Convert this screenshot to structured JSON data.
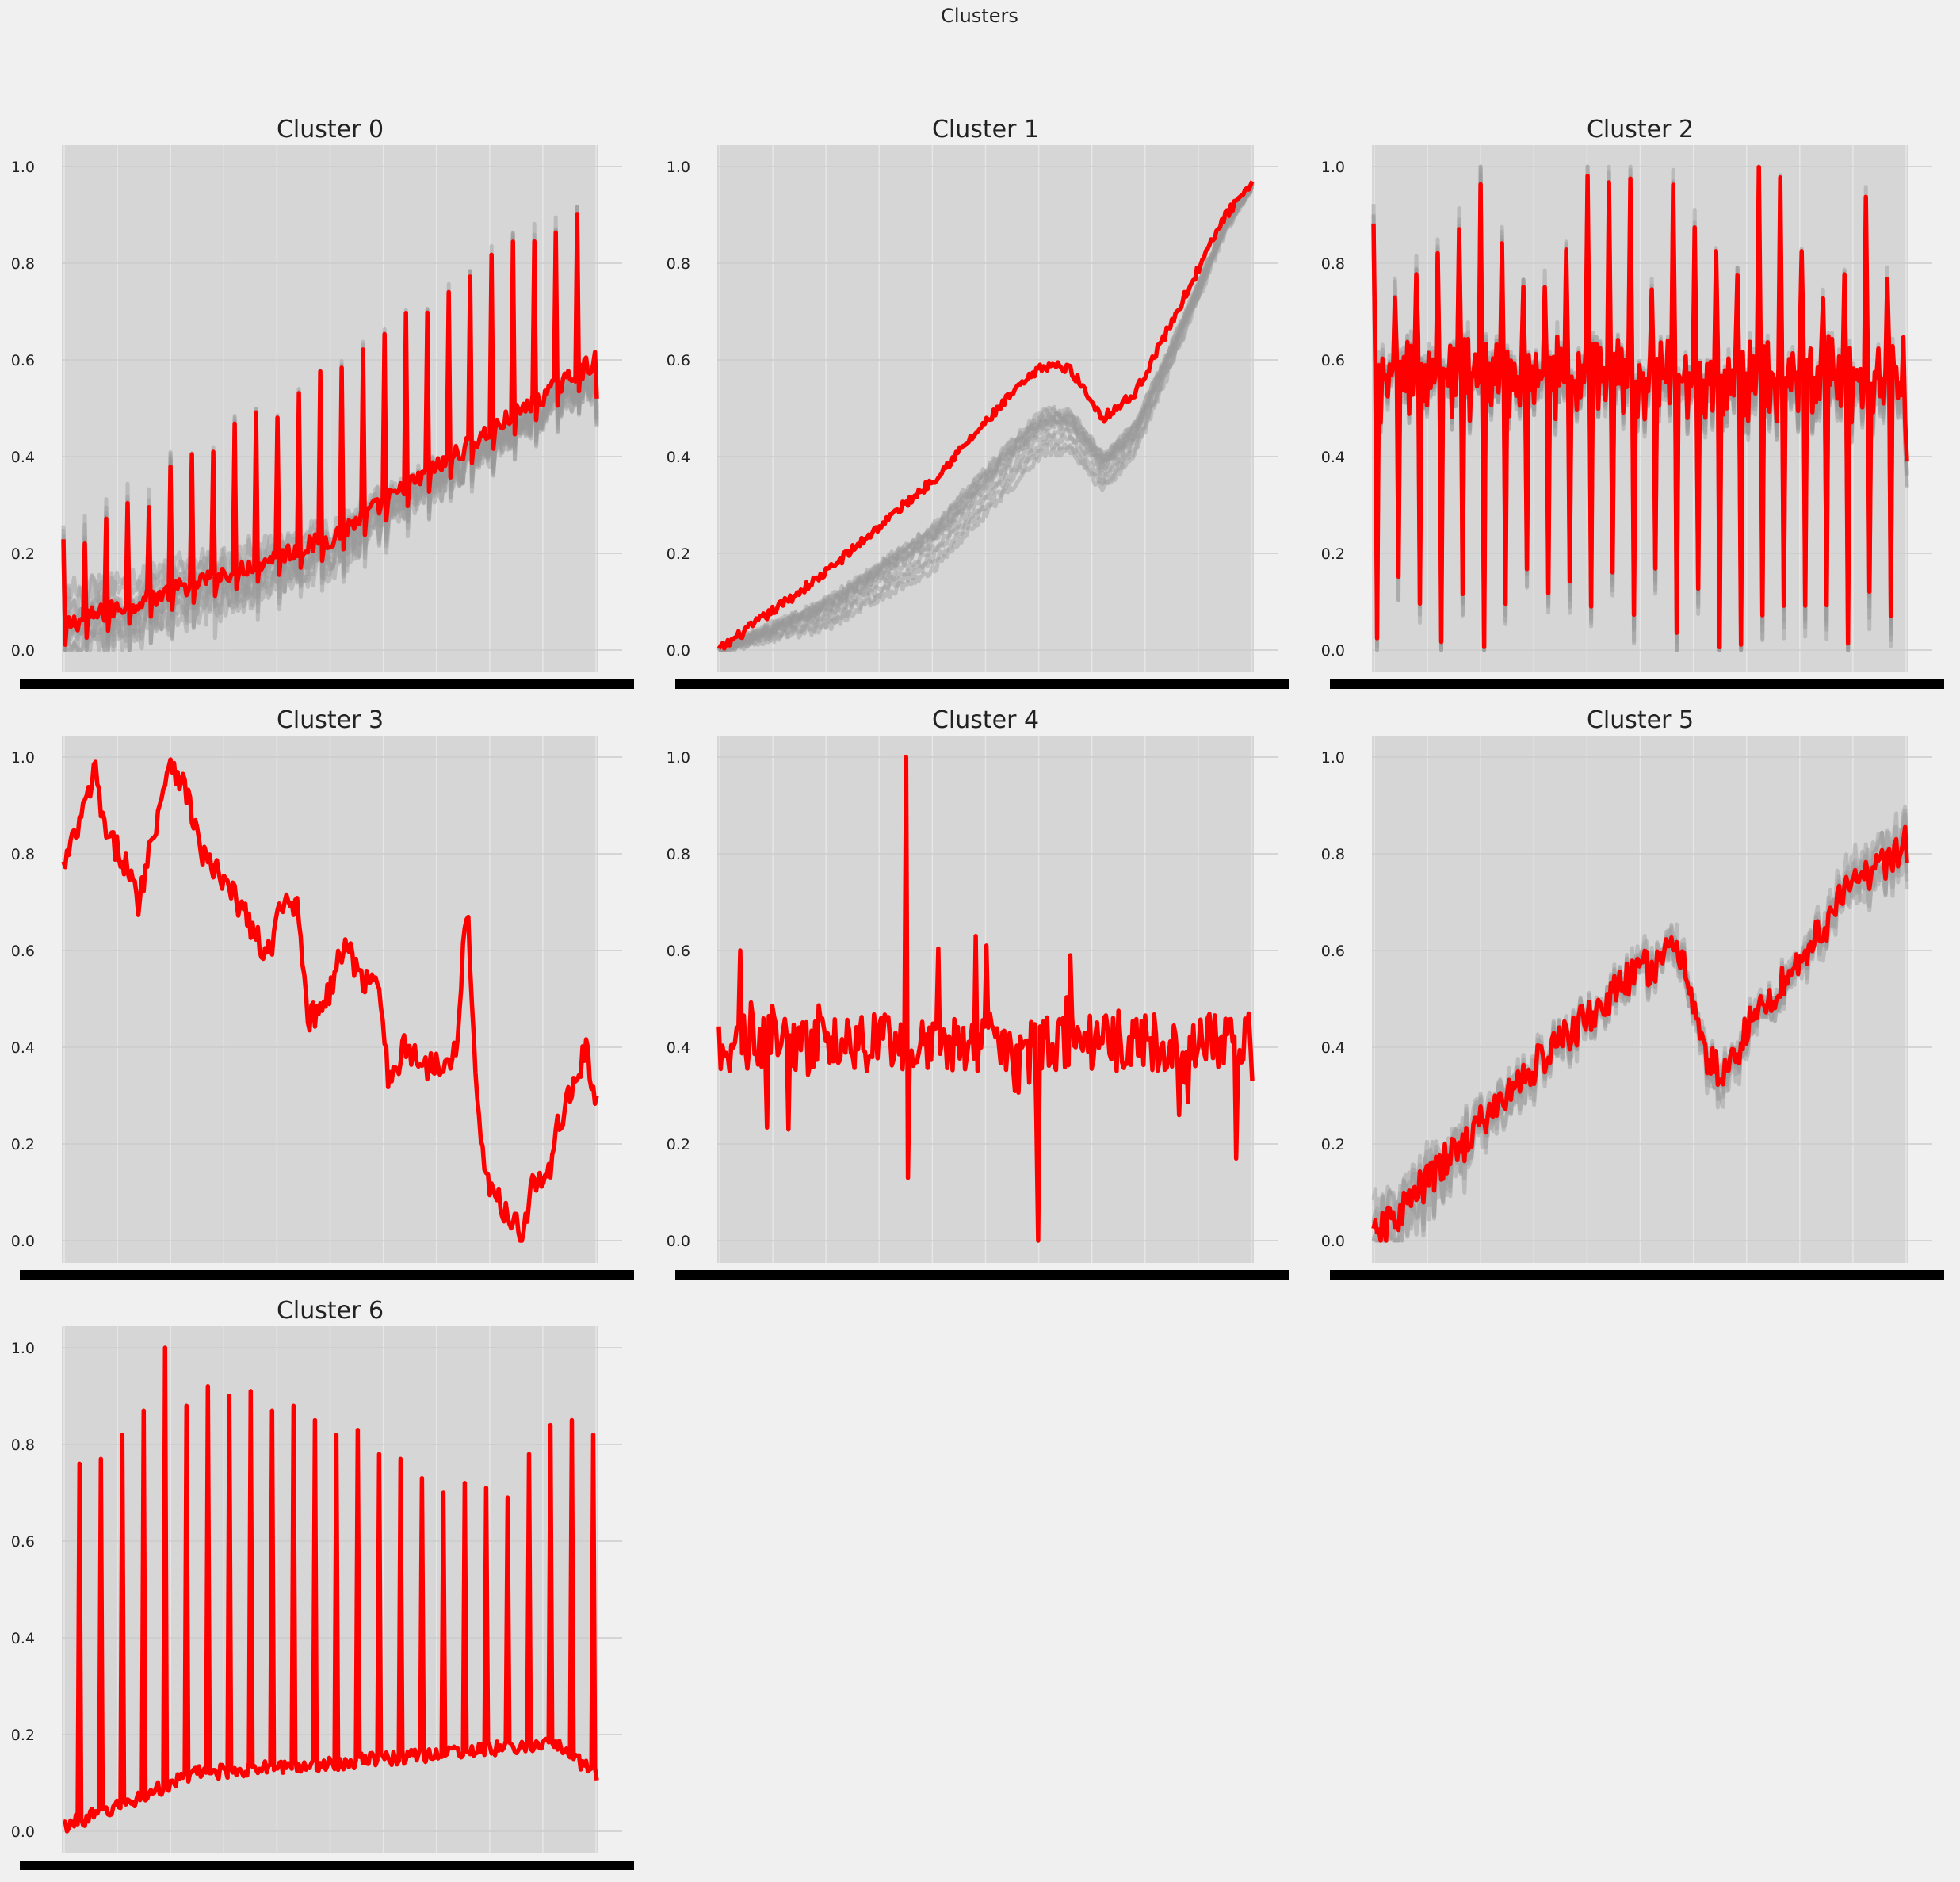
{
  "figure": {
    "suptitle": "Clusters"
  },
  "chart_data": [
    {
      "type": "line",
      "title": "Cluster 0",
      "ylim": [
        0,
        1
      ],
      "yticks": [
        "0.0",
        "0.2",
        "0.4",
        "0.6",
        "0.8",
        "1.0"
      ],
      "members": 10,
      "n": 300,
      "gray": true,
      "centroid": {
        "kind": "trend_spikes",
        "trend": [
          [
            0,
            0.05
          ],
          [
            0.5,
            0.23
          ],
          [
            1.0,
            0.6
          ]
        ],
        "period": 12,
        "spike": [
          0.2,
          0.95
        ],
        "dip": 0.04,
        "noise": 0.02,
        "end": 0.52
      },
      "color": "#ff0000",
      "member_color": "#999999"
    },
    {
      "type": "line",
      "title": "Cluster 1",
      "ylim": [
        0,
        1
      ],
      "yticks": [
        "0.0",
        "0.2",
        "0.4",
        "0.6",
        "0.8",
        "1.0"
      ],
      "members": 12,
      "n": 300,
      "gray": true,
      "centroid": {
        "kind": "curve",
        "points": [
          [
            0,
            0.0
          ],
          [
            0.2,
            0.16
          ],
          [
            0.4,
            0.35
          ],
          [
            0.55,
            0.53
          ],
          [
            0.6,
            0.58
          ],
          [
            0.62,
            0.59
          ],
          [
            0.66,
            0.58
          ],
          [
            0.72,
            0.48
          ],
          [
            0.78,
            0.53
          ],
          [
            0.85,
            0.68
          ],
          [
            0.95,
            0.9
          ],
          [
            1.0,
            0.96
          ]
        ],
        "noise": 0.01
      },
      "color": "#ff0000",
      "member_color": "#999999"
    },
    {
      "type": "line",
      "title": "Cluster 2",
      "ylim": [
        0,
        1
      ],
      "yticks": [
        "0.0",
        "0.2",
        "0.4",
        "0.6",
        "0.8",
        "1.0"
      ],
      "members": 8,
      "n": 300,
      "gray": true,
      "centroid": {
        "kind": "oscillation",
        "base": 0.56,
        "noise": 0.05,
        "period": 12,
        "spike": [
          0.72,
          1.0
        ],
        "dip": [
          0.0,
          0.17
        ],
        "end": 0.39
      },
      "color": "#ff0000",
      "member_color": "#999999"
    },
    {
      "type": "line",
      "title": "Cluster 3",
      "ylim": [
        0,
        1
      ],
      "yticks": [
        "0.0",
        "0.2",
        "0.4",
        "0.6",
        "0.8",
        "1.0"
      ],
      "members": 0,
      "n": 300,
      "gray": false,
      "centroid": {
        "kind": "curve",
        "points": [
          [
            0,
            0.77
          ],
          [
            0.03,
            0.86
          ],
          [
            0.06,
            0.97
          ],
          [
            0.08,
            0.83
          ],
          [
            0.11,
            0.8
          ],
          [
            0.14,
            0.7
          ],
          [
            0.17,
            0.85
          ],
          [
            0.2,
            1.0
          ],
          [
            0.23,
            0.93
          ],
          [
            0.26,
            0.8
          ],
          [
            0.3,
            0.74
          ],
          [
            0.34,
            0.68
          ],
          [
            0.38,
            0.58
          ],
          [
            0.41,
            0.69
          ],
          [
            0.44,
            0.7
          ],
          [
            0.46,
            0.45
          ],
          [
            0.5,
            0.52
          ],
          [
            0.53,
            0.62
          ],
          [
            0.56,
            0.53
          ],
          [
            0.59,
            0.56
          ],
          [
            0.61,
            0.32
          ],
          [
            0.64,
            0.4
          ],
          [
            0.68,
            0.36
          ],
          [
            0.72,
            0.38
          ],
          [
            0.74,
            0.4
          ],
          [
            0.75,
            0.64
          ],
          [
            0.76,
            0.64
          ],
          [
            0.78,
            0.22
          ],
          [
            0.8,
            0.1
          ],
          [
            0.84,
            0.05
          ],
          [
            0.86,
            0.01
          ],
          [
            0.88,
            0.12
          ],
          [
            0.91,
            0.13
          ],
          [
            0.93,
            0.25
          ],
          [
            0.96,
            0.33
          ],
          [
            0.98,
            0.4
          ],
          [
            1.0,
            0.27
          ]
        ],
        "noise": 0.03
      },
      "color": "#ff0000",
      "member_color": "#999999"
    },
    {
      "type": "line",
      "title": "Cluster 4",
      "ylim": [
        0,
        1
      ],
      "yticks": [
        "0.0",
        "0.2",
        "0.4",
        "0.6",
        "0.8",
        "1.0"
      ],
      "members": 0,
      "n": 300,
      "gray": false,
      "centroid": {
        "kind": "noise",
        "base": 0.41,
        "amp": 0.06,
        "extra": [
          [
            0.35,
            1.0
          ],
          [
            0.355,
            0.13
          ],
          [
            0.6,
            0.0
          ],
          [
            0.13,
            0.23
          ],
          [
            0.04,
            0.6
          ],
          [
            0.97,
            0.17
          ],
          [
            0.48,
            0.63
          ],
          [
            0.5,
            0.61
          ],
          [
            0.66,
            0.59
          ]
        ],
        "end": 0.33
      },
      "color": "#ff0000",
      "member_color": "#999999"
    },
    {
      "type": "line",
      "title": "Cluster 5",
      "ylim": [
        0,
        1
      ],
      "yticks": [
        "0.0",
        "0.2",
        "0.4",
        "0.6",
        "0.8",
        "1.0"
      ],
      "members": 6,
      "n": 300,
      "gray": true,
      "centroid": {
        "kind": "curve",
        "points": [
          [
            0,
            0.0
          ],
          [
            0.1,
            0.12
          ],
          [
            0.2,
            0.24
          ],
          [
            0.3,
            0.36
          ],
          [
            0.4,
            0.46
          ],
          [
            0.5,
            0.56
          ],
          [
            0.58,
            0.6
          ],
          [
            0.6,
            0.48
          ],
          [
            0.62,
            0.38
          ],
          [
            0.66,
            0.34
          ],
          [
            0.7,
            0.44
          ],
          [
            0.8,
            0.58
          ],
          [
            0.9,
            0.74
          ],
          [
            1.0,
            0.82
          ]
        ],
        "noise": 0.04
      },
      "color": "#ff0000",
      "member_color": "#999999"
    },
    {
      "type": "line",
      "title": "Cluster 6",
      "ylim": [
        0,
        1
      ],
      "yticks": [
        "0.0",
        "0.2",
        "0.4",
        "0.6",
        "0.8",
        "1.0"
      ],
      "members": 0,
      "n": 300,
      "gray": false,
      "centroid": {
        "kind": "spikes",
        "base": [
          [
            0,
            0.01
          ],
          [
            0.1,
            0.05
          ],
          [
            0.25,
            0.12
          ],
          [
            0.5,
            0.14
          ],
          [
            0.8,
            0.17
          ],
          [
            0.92,
            0.18
          ],
          [
            1.0,
            0.12
          ]
        ],
        "period": 12,
        "spike_start": 0.03,
        "spike_end": 0.93,
        "spike_peaks": [
          0.76,
          0.77,
          0.82,
          0.87,
          1.0,
          0.88,
          0.92,
          0.9,
          0.91,
          0.87,
          0.88,
          0.85,
          0.82,
          0.83,
          0.78,
          0.77,
          0.73,
          0.7,
          0.72,
          0.71,
          0.69,
          0.78,
          0.84,
          0.85,
          0.82,
          0.75,
          0.38
        ],
        "noise": 0.015
      },
      "color": "#ff0000",
      "member_color": "#999999"
    }
  ]
}
